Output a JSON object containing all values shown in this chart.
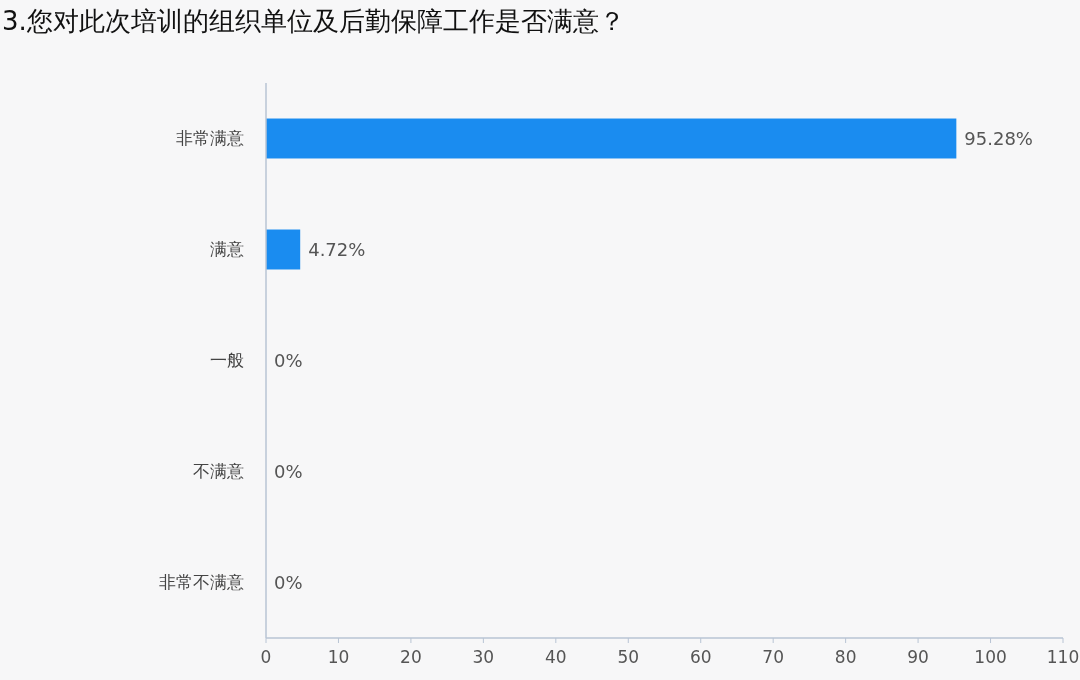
{
  "chart_data": {
    "type": "bar",
    "orientation": "horizontal",
    "title": "3.您对此次培训的组织单位及后勤保障工作是否满意？",
    "categories": [
      "非常满意",
      "满意",
      "一般",
      "不满意",
      "非常不满意"
    ],
    "values": [
      95.28,
      4.72,
      0,
      0,
      0
    ],
    "value_labels": [
      "95.28%",
      "4.72%",
      "0%",
      "0%",
      "0%"
    ],
    "color": "#1a8cf0",
    "xlim": [
      0,
      110
    ],
    "xticks": [
      0,
      10,
      20,
      30,
      40,
      50,
      60,
      70,
      80,
      90,
      100,
      110
    ],
    "grid": false
  }
}
